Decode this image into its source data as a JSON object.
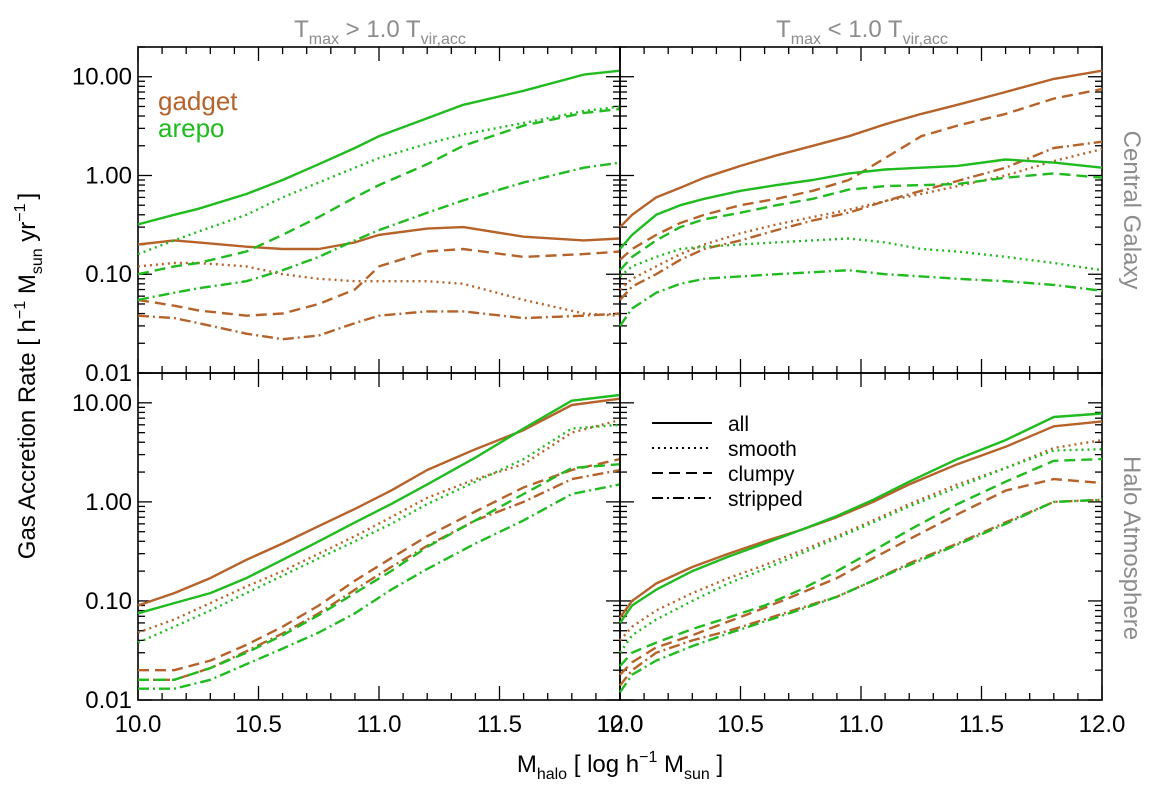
{
  "figure": {
    "y_axis_label": {
      "base": "Gas Accretion Rate [ h",
      "sup1": "−1",
      "mid1": " M",
      "sub1": "sun",
      "mid2": "  yr",
      "sup2": "−1",
      "end": "]"
    },
    "x_axis_label": {
      "base": "M",
      "sub": "halo",
      "rest": " [ log h",
      "sup": "−1",
      "end": " M",
      "sub2": "sun",
      "close": " ]"
    },
    "column_titles": [
      {
        "t": "T",
        "sub1": "max",
        "mid": " > 1.0 T",
        "sub2": "vir,acc"
      },
      {
        "t": "T",
        "sub1": "max",
        "mid": " < 1.0 T",
        "sub2": "vir,acc"
      }
    ],
    "row_titles": [
      "Central Galaxy",
      "Halo Atmosphere"
    ],
    "legend_codes": [
      {
        "name": "gadget",
        "color": "#b5632a"
      },
      {
        "name": "arepo",
        "color": "#1fbb1f"
      }
    ],
    "legend_styles": [
      {
        "name": "all",
        "dash": "solid"
      },
      {
        "name": "smooth",
        "dash": "dotted"
      },
      {
        "name": "clumpy",
        "dash": "dashed"
      },
      {
        "name": "stripped",
        "dash": "dashdot"
      }
    ],
    "title_color": "#8c8c8c",
    "axis_color": "#000000"
  },
  "chart_data": [
    {
      "panel": "top-left",
      "type": "line",
      "x_scale": "linear",
      "y_scale": "log",
      "xlim": [
        10.0,
        12.0
      ],
      "ylim": [
        0.01,
        20.0
      ],
      "x_ticks": [
        "10.0",
        "10.5",
        "11.0",
        "11.5",
        "12.0"
      ],
      "y_ticks": [
        "0.01",
        "0.10",
        "1.00",
        "10.00"
      ],
      "x": [
        10.0,
        10.15,
        10.25,
        10.45,
        10.6,
        10.75,
        10.9,
        11.0,
        11.2,
        11.35,
        11.6,
        11.85,
        12.0
      ],
      "series": [
        {
          "code": "gadget",
          "style": "all",
          "values": [
            0.2,
            0.22,
            0.21,
            0.19,
            0.18,
            0.18,
            0.21,
            0.25,
            0.29,
            0.3,
            0.24,
            0.22,
            0.23
          ]
        },
        {
          "code": "gadget",
          "style": "smooth",
          "values": [
            0.12,
            0.13,
            0.13,
            0.12,
            0.1,
            0.09,
            0.085,
            0.085,
            0.085,
            0.08,
            0.055,
            0.04,
            0.038
          ]
        },
        {
          "code": "gadget",
          "style": "clumpy",
          "values": [
            0.055,
            0.048,
            0.043,
            0.038,
            0.04,
            0.05,
            0.07,
            0.12,
            0.17,
            0.18,
            0.15,
            0.16,
            0.17
          ]
        },
        {
          "code": "gadget",
          "style": "stripped",
          "values": [
            0.038,
            0.036,
            0.032,
            0.025,
            0.022,
            0.024,
            0.032,
            0.038,
            0.042,
            0.042,
            0.036,
            0.038,
            0.04
          ]
        },
        {
          "code": "arepo",
          "style": "all",
          "values": [
            0.32,
            0.4,
            0.46,
            0.65,
            0.9,
            1.3,
            1.9,
            2.5,
            3.8,
            5.2,
            7.2,
            10.5,
            11.5
          ]
        },
        {
          "code": "arepo",
          "style": "smooth",
          "values": [
            0.16,
            0.22,
            0.27,
            0.4,
            0.6,
            0.85,
            1.2,
            1.5,
            2.1,
            2.6,
            3.4,
            4.5,
            5.0
          ]
        },
        {
          "code": "arepo",
          "style": "clumpy",
          "values": [
            0.1,
            0.12,
            0.13,
            0.17,
            0.25,
            0.38,
            0.6,
            0.8,
            1.3,
            2.0,
            3.2,
            4.3,
            4.7
          ]
        },
        {
          "code": "arepo",
          "style": "stripped",
          "values": [
            0.055,
            0.065,
            0.072,
            0.085,
            0.11,
            0.15,
            0.22,
            0.28,
            0.42,
            0.56,
            0.85,
            1.2,
            1.35
          ]
        }
      ]
    },
    {
      "panel": "top-right",
      "type": "line",
      "x_scale": "linear",
      "y_scale": "log",
      "xlim": [
        10.0,
        12.0
      ],
      "ylim": [
        0.01,
        20.0
      ],
      "x_ticks": [
        "10.0",
        "10.5",
        "11.0",
        "11.5",
        "12.0"
      ],
      "y_ticks": [
        "0.01",
        "0.10",
        "1.00",
        "10.00"
      ],
      "x": [
        10.0,
        10.05,
        10.15,
        10.25,
        10.35,
        10.5,
        10.65,
        10.8,
        10.95,
        11.1,
        11.25,
        11.4,
        11.6,
        11.8,
        12.0
      ],
      "series": [
        {
          "code": "gadget",
          "style": "all",
          "values": [
            0.3,
            0.4,
            0.6,
            0.75,
            0.95,
            1.25,
            1.6,
            2.0,
            2.5,
            3.3,
            4.2,
            5.2,
            7.0,
            9.5,
            11.5
          ]
        },
        {
          "code": "gadget",
          "style": "smooth",
          "values": [
            0.07,
            0.09,
            0.12,
            0.16,
            0.2,
            0.26,
            0.32,
            0.38,
            0.45,
            0.55,
            0.65,
            0.78,
            1.0,
            1.4,
            1.85
          ]
        },
        {
          "code": "gadget",
          "style": "clumpy",
          "values": [
            0.14,
            0.18,
            0.25,
            0.33,
            0.4,
            0.5,
            0.58,
            0.7,
            0.9,
            1.5,
            2.5,
            3.2,
            4.2,
            6.0,
            7.5
          ]
        },
        {
          "code": "gadget",
          "style": "stripped",
          "values": [
            0.055,
            0.075,
            0.1,
            0.14,
            0.18,
            0.22,
            0.28,
            0.35,
            0.42,
            0.55,
            0.7,
            0.88,
            1.2,
            1.9,
            2.2
          ]
        },
        {
          "code": "arepo",
          "style": "all",
          "values": [
            0.18,
            0.25,
            0.4,
            0.5,
            0.58,
            0.7,
            0.8,
            0.9,
            1.05,
            1.15,
            1.2,
            1.25,
            1.45,
            1.35,
            1.2
          ]
        },
        {
          "code": "arepo",
          "style": "smooth",
          "values": [
            0.095,
            0.12,
            0.15,
            0.18,
            0.19,
            0.2,
            0.21,
            0.22,
            0.23,
            0.21,
            0.18,
            0.17,
            0.15,
            0.13,
            0.11
          ]
        },
        {
          "code": "arepo",
          "style": "clumpy",
          "values": [
            0.11,
            0.15,
            0.22,
            0.3,
            0.36,
            0.42,
            0.5,
            0.58,
            0.72,
            0.78,
            0.8,
            0.82,
            0.95,
            1.05,
            0.95
          ]
        },
        {
          "code": "arepo",
          "style": "stripped",
          "values": [
            0.03,
            0.045,
            0.065,
            0.08,
            0.09,
            0.095,
            0.1,
            0.105,
            0.11,
            0.1,
            0.095,
            0.09,
            0.085,
            0.078,
            0.068
          ]
        }
      ]
    },
    {
      "panel": "bottom-left",
      "type": "line",
      "x_scale": "linear",
      "y_scale": "log",
      "xlim": [
        10.0,
        12.0
      ],
      "ylim": [
        0.01,
        20.0
      ],
      "x_ticks": [
        "10.0",
        "10.5",
        "11.0",
        "11.5",
        "12.0"
      ],
      "y_ticks": [
        "0.01",
        "0.10",
        "1.00",
        "10.00"
      ],
      "x": [
        10.0,
        10.15,
        10.3,
        10.45,
        10.6,
        10.75,
        10.9,
        11.05,
        11.2,
        11.4,
        11.6,
        11.8,
        12.0
      ],
      "series": [
        {
          "code": "gadget",
          "style": "all",
          "values": [
            0.09,
            0.12,
            0.17,
            0.26,
            0.38,
            0.57,
            0.85,
            1.3,
            2.1,
            3.4,
            5.3,
            9.5,
            11.0
          ]
        },
        {
          "code": "gadget",
          "style": "smooth",
          "values": [
            0.048,
            0.065,
            0.095,
            0.14,
            0.2,
            0.3,
            0.45,
            0.7,
            1.1,
            1.7,
            2.4,
            5.0,
            6.7
          ]
        },
        {
          "code": "gadget",
          "style": "clumpy",
          "values": [
            0.02,
            0.02,
            0.025,
            0.036,
            0.055,
            0.09,
            0.16,
            0.27,
            0.45,
            0.8,
            1.4,
            2.1,
            2.7
          ]
        },
        {
          "code": "gadget",
          "style": "stripped",
          "values": [
            0.016,
            0.016,
            0.021,
            0.031,
            0.047,
            0.075,
            0.13,
            0.22,
            0.36,
            0.65,
            1.0,
            1.7,
            2.1
          ]
        },
        {
          "code": "arepo",
          "style": "all",
          "values": [
            0.075,
            0.095,
            0.12,
            0.17,
            0.26,
            0.4,
            0.62,
            0.95,
            1.5,
            2.8,
            5.5,
            10.5,
            12.0
          ]
        },
        {
          "code": "arepo",
          "style": "smooth",
          "values": [
            0.038,
            0.055,
            0.08,
            0.12,
            0.18,
            0.27,
            0.4,
            0.6,
            0.95,
            1.6,
            2.7,
            5.5,
            6.0
          ]
        },
        {
          "code": "arepo",
          "style": "clumpy",
          "values": [
            0.016,
            0.016,
            0.021,
            0.03,
            0.045,
            0.072,
            0.12,
            0.2,
            0.35,
            0.65,
            1.2,
            2.2,
            2.4
          ]
        },
        {
          "code": "arepo",
          "style": "stripped",
          "values": [
            0.013,
            0.013,
            0.016,
            0.023,
            0.033,
            0.048,
            0.075,
            0.13,
            0.21,
            0.38,
            0.65,
            1.2,
            1.5
          ]
        }
      ]
    },
    {
      "panel": "bottom-right",
      "type": "line",
      "x_scale": "linear",
      "y_scale": "log",
      "xlim": [
        10.0,
        12.0
      ],
      "ylim": [
        0.01,
        20.0
      ],
      "x_ticks": [
        "10.0",
        "10.5",
        "11.0",
        "11.5",
        "12.0"
      ],
      "y_ticks": [
        "0.01",
        "0.10",
        "1.00",
        "10.00"
      ],
      "x": [
        10.0,
        10.05,
        10.15,
        10.3,
        10.45,
        10.6,
        10.75,
        10.9,
        11.05,
        11.2,
        11.4,
        11.6,
        11.8,
        12.0
      ],
      "series": [
        {
          "code": "gadget",
          "style": "all",
          "values": [
            0.068,
            0.1,
            0.15,
            0.22,
            0.3,
            0.4,
            0.52,
            0.7,
            1.0,
            1.5,
            2.4,
            3.6,
            5.8,
            6.5
          ]
        },
        {
          "code": "gadget",
          "style": "smooth",
          "values": [
            0.04,
            0.055,
            0.08,
            0.12,
            0.17,
            0.23,
            0.32,
            0.45,
            0.65,
            0.95,
            1.5,
            2.2,
            3.5,
            4.2
          ]
        },
        {
          "code": "gadget",
          "style": "clumpy",
          "values": [
            0.018,
            0.024,
            0.034,
            0.045,
            0.062,
            0.085,
            0.12,
            0.17,
            0.27,
            0.42,
            0.75,
            1.3,
            1.7,
            1.55
          ]
        },
        {
          "code": "gadget",
          "style": "stripped",
          "values": [
            0.014,
            0.02,
            0.03,
            0.04,
            0.05,
            0.065,
            0.085,
            0.11,
            0.16,
            0.24,
            0.38,
            0.62,
            1.0,
            1.05
          ]
        },
        {
          "code": "arepo",
          "style": "all",
          "values": [
            0.06,
            0.09,
            0.13,
            0.2,
            0.28,
            0.38,
            0.52,
            0.72,
            1.05,
            1.6,
            2.7,
            4.2,
            7.2,
            7.8
          ]
        },
        {
          "code": "arepo",
          "style": "smooth",
          "values": [
            0.03,
            0.045,
            0.065,
            0.1,
            0.15,
            0.21,
            0.3,
            0.43,
            0.62,
            0.9,
            1.4,
            2.2,
            3.3,
            3.4
          ]
        },
        {
          "code": "arepo",
          "style": "clumpy",
          "values": [
            0.022,
            0.03,
            0.038,
            0.052,
            0.068,
            0.09,
            0.13,
            0.2,
            0.32,
            0.52,
            0.95,
            1.6,
            2.6,
            2.7
          ]
        },
        {
          "code": "arepo",
          "style": "stripped",
          "values": [
            0.012,
            0.018,
            0.025,
            0.035,
            0.047,
            0.062,
            0.082,
            0.11,
            0.16,
            0.23,
            0.37,
            0.6,
            1.0,
            1.05
          ]
        }
      ]
    }
  ]
}
